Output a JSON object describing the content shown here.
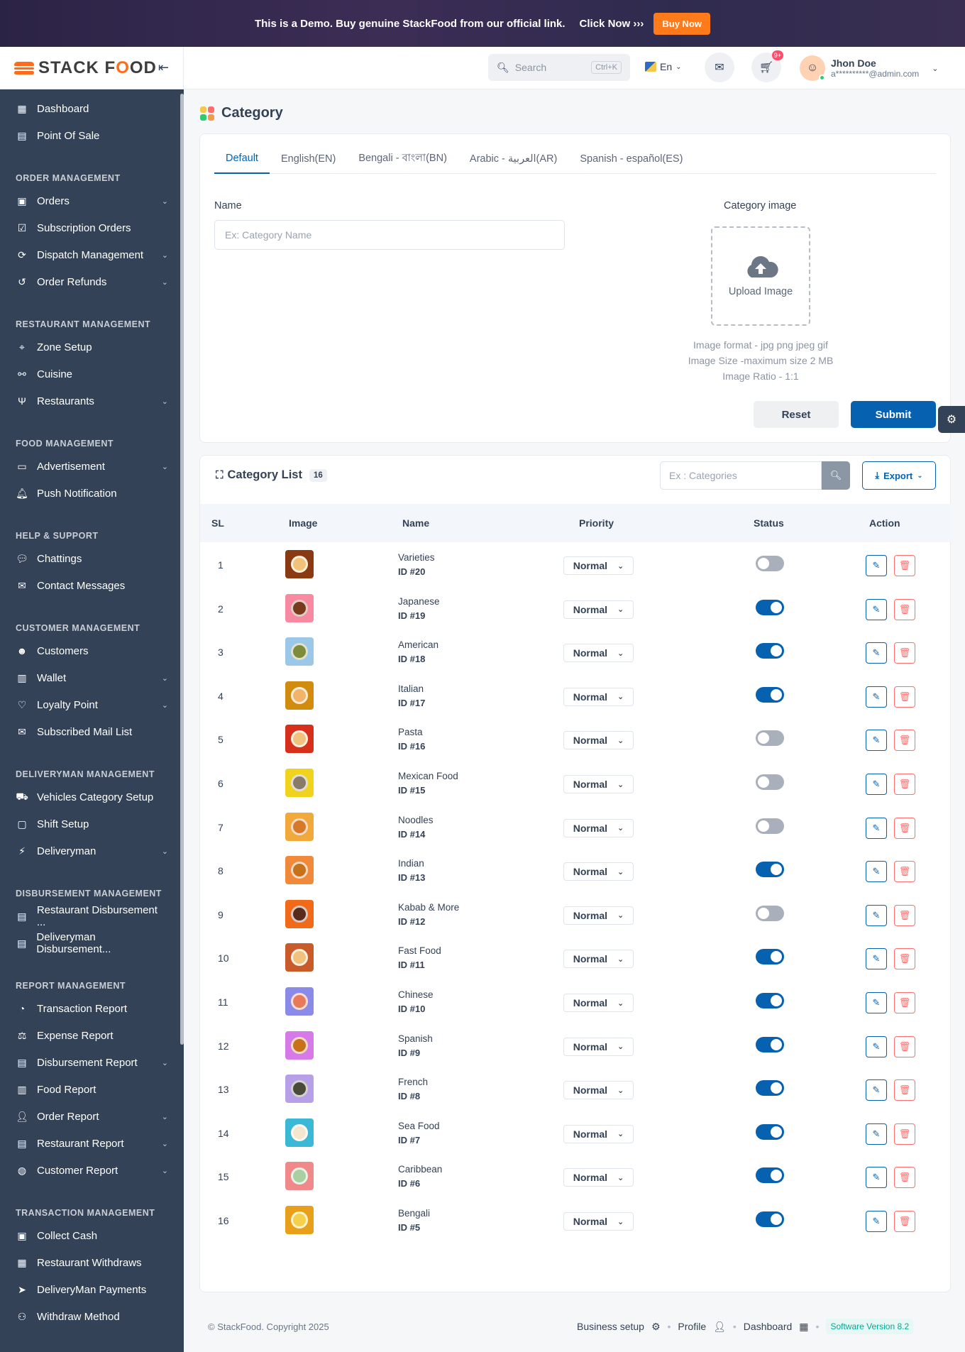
{
  "banner": {
    "text": "This is a Demo. Buy genuine StackFood from our official link.",
    "click": "Click Now ›››",
    "buy": "Buy Now"
  },
  "brand": {
    "logo_left": "STACK F",
    "logo_o": "O",
    "logo_right": "OD"
  },
  "sidebar": {
    "items_top": [
      {
        "label": "Dashboard",
        "icon": "dashboard-icon"
      },
      {
        "label": "Point Of Sale",
        "icon": "pos-icon"
      }
    ],
    "sections": [
      {
        "title": "ORDER MANAGEMENT",
        "items": [
          {
            "label": "Orders",
            "chev": true
          },
          {
            "label": "Subscription Orders",
            "chev": false
          },
          {
            "label": "Dispatch Management",
            "chev": true
          },
          {
            "label": "Order Refunds",
            "chev": true
          }
        ]
      },
      {
        "title": "RESTAURANT MANAGEMENT",
        "items": [
          {
            "label": "Zone Setup",
            "chev": false
          },
          {
            "label": "Cuisine",
            "chev": false
          },
          {
            "label": "Restaurants",
            "chev": true
          }
        ]
      },
      {
        "title": "FOOD MANAGEMENT",
        "items": [
          {
            "label": "Advertisement",
            "chev": true
          },
          {
            "label": "Push Notification",
            "chev": false
          }
        ]
      },
      {
        "title": "HELP & SUPPORT",
        "items": [
          {
            "label": "Chattings",
            "chev": false
          },
          {
            "label": "Contact Messages",
            "chev": false
          }
        ]
      },
      {
        "title": "CUSTOMER MANAGEMENT",
        "items": [
          {
            "label": "Customers",
            "chev": false
          },
          {
            "label": "Wallet",
            "chev": true
          },
          {
            "label": "Loyalty Point",
            "chev": true
          },
          {
            "label": "Subscribed Mail List",
            "chev": false
          }
        ]
      },
      {
        "title": "DELIVERYMAN MANAGEMENT",
        "items": [
          {
            "label": "Vehicles Category Setup",
            "chev": false
          },
          {
            "label": "Shift Setup",
            "chev": false
          },
          {
            "label": "Deliveryman",
            "chev": true
          }
        ]
      },
      {
        "title": "DISBURSEMENT MANAGEMENT",
        "items": [
          {
            "label": "Restaurant Disbursement ...",
            "chev": false
          },
          {
            "label": "Deliveryman Disbursement...",
            "chev": false
          }
        ]
      },
      {
        "title": "REPORT MANAGEMENT",
        "items": [
          {
            "label": "Transaction Report",
            "chev": false
          },
          {
            "label": "Expense Report",
            "chev": false
          },
          {
            "label": "Disbursement Report",
            "chev": true
          },
          {
            "label": "Food Report",
            "chev": false
          },
          {
            "label": "Order Report",
            "chev": true
          },
          {
            "label": "Restaurant Report",
            "chev": true
          },
          {
            "label": "Customer Report",
            "chev": true
          }
        ]
      },
      {
        "title": "TRANSACTION MANAGEMENT",
        "items": [
          {
            "label": "Collect Cash",
            "chev": false
          },
          {
            "label": "Restaurant Withdraws",
            "chev": false
          },
          {
            "label": "DeliveryMan Payments",
            "chev": false
          },
          {
            "label": "Withdraw Method",
            "chev": false
          }
        ]
      }
    ]
  },
  "header": {
    "search_placeholder": "Search",
    "search_shortcut": "Ctrl+K",
    "language": "En",
    "cart_badge": "9+",
    "user_name": "Jhon Doe",
    "user_email": "a**********@admin.com"
  },
  "page": {
    "title": "Category"
  },
  "form": {
    "tabs": [
      "Default",
      "English(EN)",
      "Bengali - বাংলা(BN)",
      "Arabic - العربية(AR)",
      "Spanish - español(ES)"
    ],
    "active_tab": 0,
    "name_label": "Name",
    "name_placeholder": "Ex: Category Name",
    "image_label": "Category image",
    "upload_text": "Upload Image",
    "hint_format": "Image format - jpg png jpeg gif",
    "hint_size": "Image Size -maximum size 2 MB",
    "hint_ratio": "Image Ratio - 1:1",
    "reset": "Reset",
    "submit": "Submit"
  },
  "list": {
    "title": "Category List",
    "count": "16",
    "search_placeholder": "Ex : Categories",
    "export": "Export",
    "columns": {
      "sl": "SL",
      "image": "Image",
      "name": "Name",
      "priority": "Priority",
      "status": "Status",
      "action": "Action"
    },
    "rows": [
      {
        "sl": "1",
        "name": "Varieties",
        "id": "ID #20",
        "priority": "Normal",
        "status": false,
        "bg": "#8a3a12",
        "food": "#f3c27a"
      },
      {
        "sl": "2",
        "name": "Japanese",
        "id": "ID #19",
        "priority": "Normal",
        "status": true,
        "bg": "#f78aa0",
        "food": "#7a3a1c"
      },
      {
        "sl": "3",
        "name": "American",
        "id": "ID #18",
        "priority": "Normal",
        "status": true,
        "bg": "#9bc7e8",
        "food": "#7d8b3a"
      },
      {
        "sl": "4",
        "name": "Italian",
        "id": "ID #17",
        "priority": "Normal",
        "status": true,
        "bg": "#d18c0f",
        "food": "#f2b46b"
      },
      {
        "sl": "5",
        "name": "Pasta",
        "id": "ID #16",
        "priority": "Normal",
        "status": false,
        "bg": "#d6301c",
        "food": "#f1c27d"
      },
      {
        "sl": "6",
        "name": "Mexican Food",
        "id": "ID #15",
        "priority": "Normal",
        "status": false,
        "bg": "#f0d31c",
        "food": "#8a7a6a"
      },
      {
        "sl": "7",
        "name": "Noodles",
        "id": "ID #14",
        "priority": "Normal",
        "status": false,
        "bg": "#f0a93a",
        "food": "#d67a2a"
      },
      {
        "sl": "8",
        "name": "Indian",
        "id": "ID #13",
        "priority": "Normal",
        "status": true,
        "bg": "#f08a3a",
        "food": "#c7721a"
      },
      {
        "sl": "9",
        "name": "Kabab & More",
        "id": "ID #12",
        "priority": "Normal",
        "status": false,
        "bg": "#f06a1a",
        "food": "#5a2a1a"
      },
      {
        "sl": "10",
        "name": "Fast Food",
        "id": "ID #11",
        "priority": "Normal",
        "status": true,
        "bg": "#c95a2a",
        "food": "#f2c27d"
      },
      {
        "sl": "11",
        "name": "Chinese",
        "id": "ID #10",
        "priority": "Normal",
        "status": true,
        "bg": "#8a8ae8",
        "food": "#e87a5a"
      },
      {
        "sl": "12",
        "name": "Spanish",
        "id": "ID #9",
        "priority": "Normal",
        "status": true,
        "bg": "#d67ae8",
        "food": "#c7721a"
      },
      {
        "sl": "13",
        "name": "French",
        "id": "ID #8",
        "priority": "Normal",
        "status": true,
        "bg": "#b8a0e8",
        "food": "#4a4a3a"
      },
      {
        "sl": "14",
        "name": "Sea Food",
        "id": "ID #7",
        "priority": "Normal",
        "status": true,
        "bg": "#3ab8d6",
        "food": "#f5e6d0"
      },
      {
        "sl": "15",
        "name": "Caribbean",
        "id": "ID #6",
        "priority": "Normal",
        "status": true,
        "bg": "#f08a8a",
        "food": "#a8d0a0"
      },
      {
        "sl": "16",
        "name": "Bengali",
        "id": "ID #5",
        "priority": "Normal",
        "status": true,
        "bg": "#e8a01a",
        "food": "#f5d04a"
      }
    ]
  },
  "footer": {
    "copyright": "© StackFood. Copyright 2025",
    "business_setup": "Business setup",
    "profile": "Profile",
    "dashboard": "Dashboard",
    "version": "Software Version 8.2"
  },
  "colors": {
    "primary": "#0661b0",
    "sidebar": "#334257",
    "accent": "#ff6b1a",
    "danger": "#ff6d6d"
  }
}
